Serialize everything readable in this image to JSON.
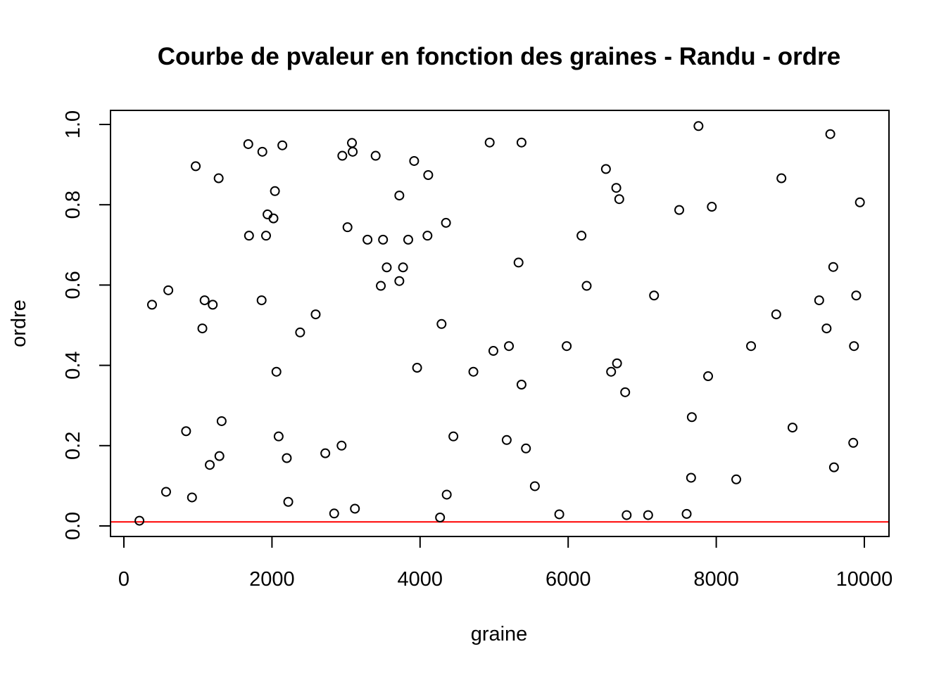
{
  "chart_data": {
    "type": "scatter",
    "title": "Courbe de pvaleur en fonction des graines - Randu - ordre",
    "xlabel": "graine",
    "ylabel": "ordre",
    "xlim": [
      0,
      10000
    ],
    "ylim": [
      0,
      1
    ],
    "x_ticks": [
      0,
      2000,
      4000,
      6000,
      8000,
      10000
    ],
    "x_tick_labels": [
      "0",
      "2000",
      "4000",
      "6000",
      "8000",
      "10000"
    ],
    "y_ticks": [
      0,
      0.2,
      0.4,
      0.6,
      0.8,
      1.0
    ],
    "y_tick_labels": [
      "0.0",
      "0.2",
      "0.4",
      "0.6",
      "0.8",
      "1.0"
    ],
    "grid": false,
    "reference_line": {
      "y": 0.01,
      "color": "#ff0000"
    },
    "points": [
      {
        "x": 210,
        "y": 0.013
      },
      {
        "x": 380,
        "y": 0.551
      },
      {
        "x": 570,
        "y": 0.085
      },
      {
        "x": 600,
        "y": 0.587
      },
      {
        "x": 840,
        "y": 0.236
      },
      {
        "x": 920,
        "y": 0.071
      },
      {
        "x": 970,
        "y": 0.896
      },
      {
        "x": 1060,
        "y": 0.492
      },
      {
        "x": 1090,
        "y": 0.562
      },
      {
        "x": 1160,
        "y": 0.152
      },
      {
        "x": 1200,
        "y": 0.551
      },
      {
        "x": 1280,
        "y": 0.866
      },
      {
        "x": 1290,
        "y": 0.174
      },
      {
        "x": 1320,
        "y": 0.261
      },
      {
        "x": 1680,
        "y": 0.951
      },
      {
        "x": 1690,
        "y": 0.723
      },
      {
        "x": 1860,
        "y": 0.562
      },
      {
        "x": 1870,
        "y": 0.932
      },
      {
        "x": 1920,
        "y": 0.723
      },
      {
        "x": 1940,
        "y": 0.776
      },
      {
        "x": 2020,
        "y": 0.766
      },
      {
        "x": 2040,
        "y": 0.834
      },
      {
        "x": 2060,
        "y": 0.384
      },
      {
        "x": 2090,
        "y": 0.223
      },
      {
        "x": 2140,
        "y": 0.948
      },
      {
        "x": 2200,
        "y": 0.169
      },
      {
        "x": 2220,
        "y": 0.06
      },
      {
        "x": 2380,
        "y": 0.482
      },
      {
        "x": 2590,
        "y": 0.527
      },
      {
        "x": 2720,
        "y": 0.181
      },
      {
        "x": 2840,
        "y": 0.031
      },
      {
        "x": 2940,
        "y": 0.2
      },
      {
        "x": 2950,
        "y": 0.922
      },
      {
        "x": 3020,
        "y": 0.744
      },
      {
        "x": 3080,
        "y": 0.954
      },
      {
        "x": 3090,
        "y": 0.932
      },
      {
        "x": 3120,
        "y": 0.043
      },
      {
        "x": 3290,
        "y": 0.713
      },
      {
        "x": 3400,
        "y": 0.922
      },
      {
        "x": 3470,
        "y": 0.598
      },
      {
        "x": 3500,
        "y": 0.713
      },
      {
        "x": 3550,
        "y": 0.644
      },
      {
        "x": 3720,
        "y": 0.823
      },
      {
        "x": 3720,
        "y": 0.61
      },
      {
        "x": 3770,
        "y": 0.644
      },
      {
        "x": 3840,
        "y": 0.713
      },
      {
        "x": 3920,
        "y": 0.909
      },
      {
        "x": 3960,
        "y": 0.394
      },
      {
        "x": 4100,
        "y": 0.723
      },
      {
        "x": 4110,
        "y": 0.874
      },
      {
        "x": 4270,
        "y": 0.021
      },
      {
        "x": 4290,
        "y": 0.503
      },
      {
        "x": 4350,
        "y": 0.755
      },
      {
        "x": 4360,
        "y": 0.078
      },
      {
        "x": 4450,
        "y": 0.223
      },
      {
        "x": 4720,
        "y": 0.384
      },
      {
        "x": 4940,
        "y": 0.955
      },
      {
        "x": 4990,
        "y": 0.436
      },
      {
        "x": 5170,
        "y": 0.214
      },
      {
        "x": 5200,
        "y": 0.448
      },
      {
        "x": 5330,
        "y": 0.656
      },
      {
        "x": 5370,
        "y": 0.955
      },
      {
        "x": 5370,
        "y": 0.352
      },
      {
        "x": 5430,
        "y": 0.193
      },
      {
        "x": 5550,
        "y": 0.099
      },
      {
        "x": 5880,
        "y": 0.029
      },
      {
        "x": 5980,
        "y": 0.448
      },
      {
        "x": 6180,
        "y": 0.723
      },
      {
        "x": 6250,
        "y": 0.598
      },
      {
        "x": 6510,
        "y": 0.889
      },
      {
        "x": 6580,
        "y": 0.384
      },
      {
        "x": 6650,
        "y": 0.842
      },
      {
        "x": 6660,
        "y": 0.405
      },
      {
        "x": 6690,
        "y": 0.814
      },
      {
        "x": 6770,
        "y": 0.333
      },
      {
        "x": 6790,
        "y": 0.027
      },
      {
        "x": 7080,
        "y": 0.027
      },
      {
        "x": 7160,
        "y": 0.574
      },
      {
        "x": 7500,
        "y": 0.787
      },
      {
        "x": 7600,
        "y": 0.03
      },
      {
        "x": 7660,
        "y": 0.12
      },
      {
        "x": 7670,
        "y": 0.271
      },
      {
        "x": 7760,
        "y": 0.996
      },
      {
        "x": 7890,
        "y": 0.373
      },
      {
        "x": 7940,
        "y": 0.795
      },
      {
        "x": 8270,
        "y": 0.116
      },
      {
        "x": 8470,
        "y": 0.448
      },
      {
        "x": 8810,
        "y": 0.527
      },
      {
        "x": 8880,
        "y": 0.866
      },
      {
        "x": 9030,
        "y": 0.245
      },
      {
        "x": 9390,
        "y": 0.562
      },
      {
        "x": 9490,
        "y": 0.492
      },
      {
        "x": 9540,
        "y": 0.976
      },
      {
        "x": 9580,
        "y": 0.645
      },
      {
        "x": 9590,
        "y": 0.146
      },
      {
        "x": 9850,
        "y": 0.207
      },
      {
        "x": 9860,
        "y": 0.448
      },
      {
        "x": 9890,
        "y": 0.574
      },
      {
        "x": 9940,
        "y": 0.806
      }
    ]
  }
}
